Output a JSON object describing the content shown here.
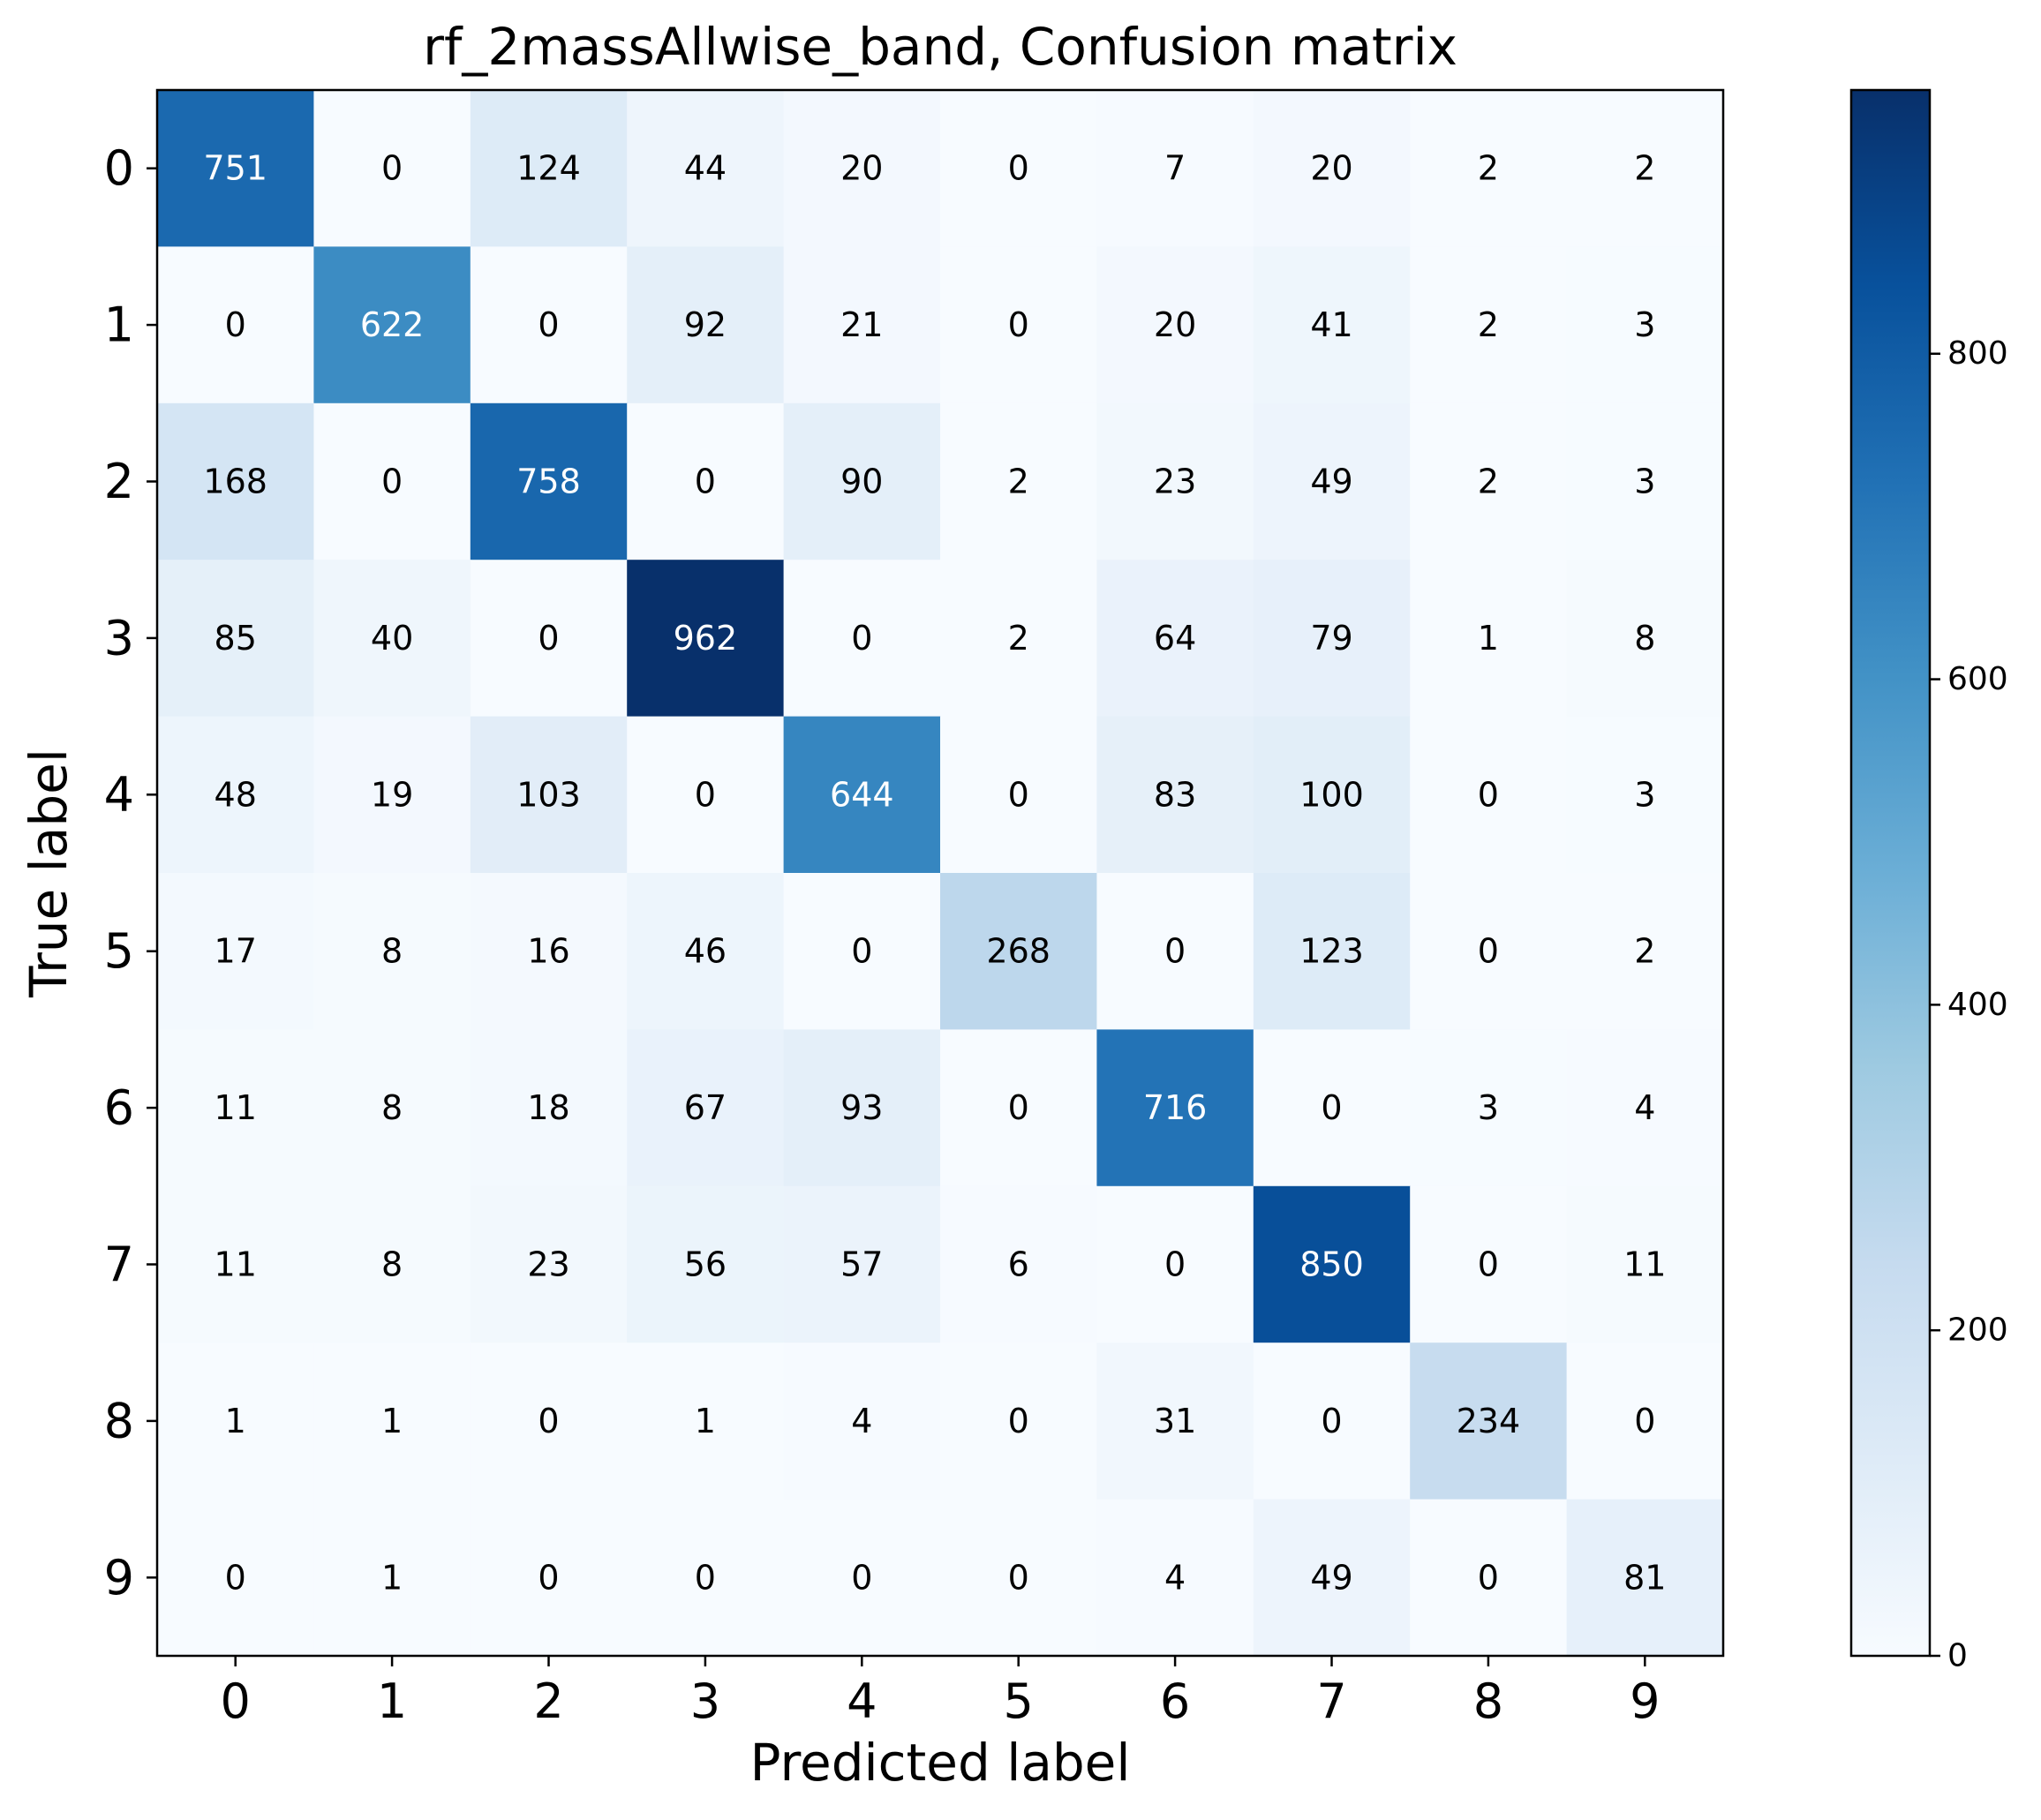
{
  "chart_data": {
    "type": "heatmap",
    "title": "rf_2massAllwise_band, Confusion matrix",
    "xlabel": "Predicted label",
    "ylabel": "True label",
    "x_categories": [
      "0",
      "1",
      "2",
      "3",
      "4",
      "5",
      "6",
      "7",
      "8",
      "9"
    ],
    "y_categories": [
      "0",
      "1",
      "2",
      "3",
      "4",
      "5",
      "6",
      "7",
      "8",
      "9"
    ],
    "matrix": [
      [
        751,
        0,
        124,
        44,
        20,
        0,
        7,
        20,
        2,
        2
      ],
      [
        0,
        622,
        0,
        92,
        21,
        0,
        20,
        41,
        2,
        3
      ],
      [
        168,
        0,
        758,
        0,
        90,
        2,
        23,
        49,
        2,
        3
      ],
      [
        85,
        40,
        0,
        962,
        0,
        2,
        64,
        79,
        1,
        8
      ],
      [
        48,
        19,
        103,
        0,
        644,
        0,
        83,
        100,
        0,
        3
      ],
      [
        17,
        8,
        16,
        46,
        0,
        268,
        0,
        123,
        0,
        2
      ],
      [
        11,
        8,
        18,
        67,
        93,
        0,
        716,
        0,
        3,
        4
      ],
      [
        11,
        8,
        23,
        56,
        57,
        6,
        0,
        850,
        0,
        11
      ],
      [
        1,
        1,
        0,
        1,
        4,
        0,
        31,
        0,
        234,
        0
      ],
      [
        0,
        1,
        0,
        0,
        0,
        0,
        4,
        49,
        0,
        81
      ]
    ],
    "colormap": "Blues",
    "color_range": [
      0,
      962
    ],
    "colorbar_ticks": [
      "0",
      "200",
      "400",
      "600",
      "800"
    ],
    "colorbar_tick_values": [
      0,
      200,
      400,
      600,
      800
    ],
    "grid": false
  }
}
